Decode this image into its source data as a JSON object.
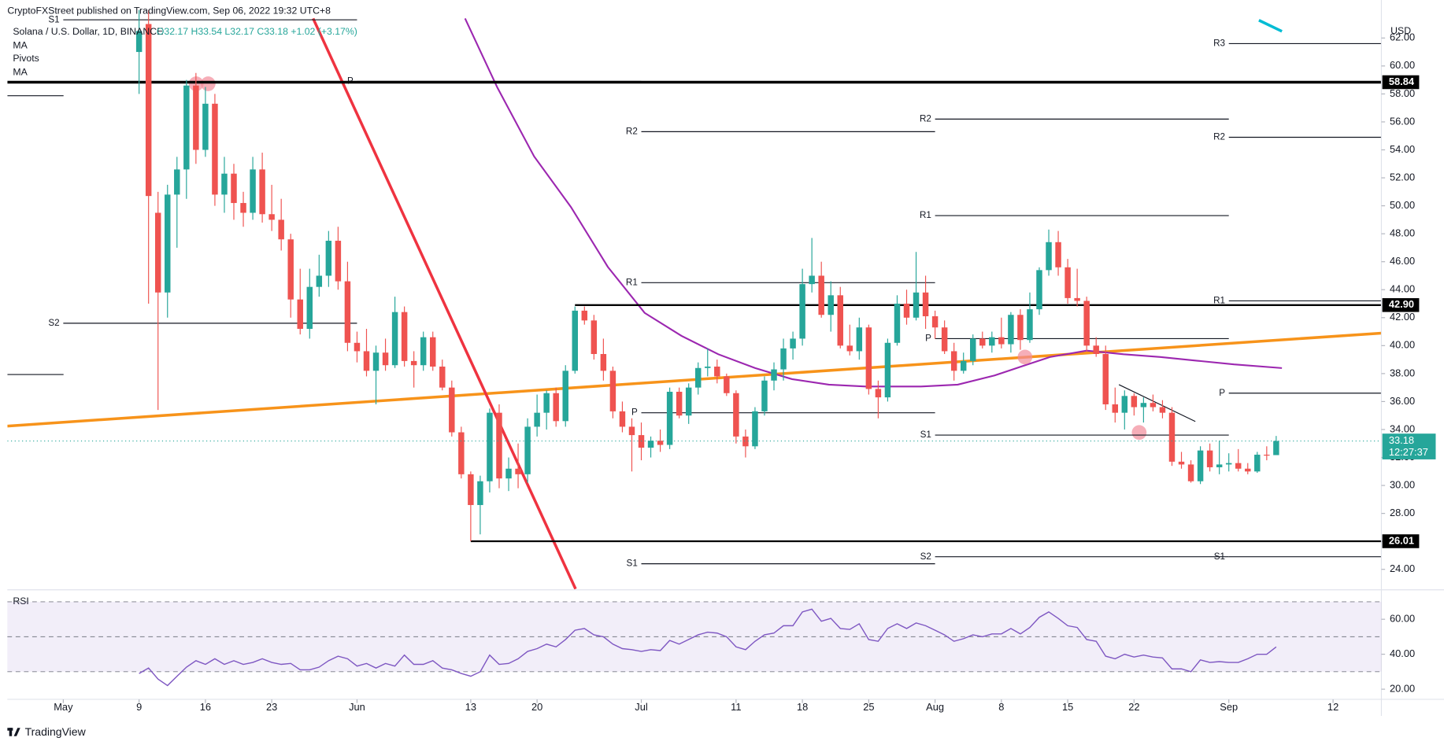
{
  "header": {
    "published": "CryptoFXStreet published on TradingView.com, Sep 06, 2022 19:32 UTC+8",
    "symbol": "Solana / U.S. Dollar, 1D, BINANCE",
    "ohlc": "O32.17 H33.54 L32.17 C33.18 +1.02 (+3.17%)",
    "indicators": [
      "MA",
      "Pivots",
      "MA"
    ]
  },
  "footer": "TradingView",
  "chart_data": {
    "type": "candlestick",
    "currency": "USD",
    "up_color": "#26a69a",
    "down_color": "#ef5350",
    "xlim": [
      -5.9,
      139.1
    ],
    "xticks": [
      {
        "value": 0,
        "label": "May"
      },
      {
        "value": 8,
        "label": "9"
      },
      {
        "value": 15,
        "label": "16"
      },
      {
        "value": 22,
        "label": "23"
      },
      {
        "value": 31,
        "label": "Jun"
      },
      {
        "value": 43,
        "label": "13"
      },
      {
        "value": 50,
        "label": "20"
      },
      {
        "value": 61,
        "label": "Jul"
      },
      {
        "value": 71,
        "label": "11"
      },
      {
        "value": 78,
        "label": "18"
      },
      {
        "value": 85,
        "label": "25"
      },
      {
        "value": 92,
        "label": "Aug"
      },
      {
        "value": 99,
        "label": "8"
      },
      {
        "value": 106,
        "label": "15"
      },
      {
        "value": 113,
        "label": "22"
      },
      {
        "value": 123,
        "label": "Sep"
      },
      {
        "value": 134,
        "label": "12"
      }
    ],
    "ylim": [
      22.6,
      63.4
    ],
    "yticks": [
      {
        "value": 24,
        "label": "24.00"
      },
      {
        "value": 26,
        "label": "26.00"
      },
      {
        "value": 28,
        "label": "28.00"
      },
      {
        "value": 30,
        "label": "30.00"
      },
      {
        "value": 32,
        "label": "32.00"
      },
      {
        "value": 34,
        "label": "34.00"
      },
      {
        "value": 36,
        "label": "36.00"
      },
      {
        "value": 38,
        "label": "38.00"
      },
      {
        "value": 40,
        "label": "40.00"
      },
      {
        "value": 42,
        "label": "42.00"
      },
      {
        "value": 44,
        "label": "44.00"
      },
      {
        "value": 46,
        "label": "46.00"
      },
      {
        "value": 48,
        "label": "48.00"
      },
      {
        "value": 50,
        "label": "50.00"
      },
      {
        "value": 52,
        "label": "52.00"
      },
      {
        "value": 54,
        "label": "54.00"
      },
      {
        "value": 56,
        "label": "56.00"
      },
      {
        "value": 58,
        "label": "58.00"
      },
      {
        "value": 60,
        "label": "60.00"
      },
      {
        "value": 62,
        "label": "62.00"
      }
    ],
    "grid": false,
    "x": [
      8,
      9,
      10,
      11,
      12,
      13,
      14,
      15,
      16,
      17,
      18,
      19,
      20,
      21,
      22,
      23,
      24,
      25,
      26,
      27,
      28,
      29,
      30,
      31,
      32,
      33,
      34,
      35,
      36,
      37,
      38,
      39,
      40,
      41,
      42,
      43,
      44,
      45,
      46,
      47,
      48,
      49,
      50,
      51,
      52,
      53,
      54,
      55,
      56,
      57,
      58,
      59,
      60,
      61,
      62,
      63,
      64,
      65,
      66,
      67,
      68,
      69,
      70,
      71,
      72,
      73,
      74,
      75,
      76,
      77,
      78,
      79,
      80,
      81,
      82,
      83,
      84,
      85,
      86,
      87,
      88,
      89,
      90,
      91,
      92,
      93,
      94,
      95,
      96,
      97,
      98,
      99,
      100,
      101,
      102,
      103,
      104,
      105,
      106,
      107,
      108,
      109,
      110,
      111,
      112,
      113,
      114,
      115,
      116,
      117,
      118,
      119,
      120,
      121,
      122,
      123,
      124,
      125,
      126,
      127,
      128
    ],
    "open": [
      61,
      63,
      49.5,
      43.8,
      50.8,
      52.6,
      58.6,
      54,
      57.3,
      50.8,
      52.3,
      50.2,
      49.5,
      52.6,
      49.4,
      49,
      47.6,
      43.3,
      41.2,
      44.2,
      45,
      47.5,
      44.6,
      40.2,
      39.6,
      38.2,
      39.5,
      38.6,
      42.4,
      38.9,
      38.6,
      40.6,
      38.5,
      37,
      33.8,
      30.8,
      28.6,
      30.3,
      35.2,
      30.5,
      31.2,
      30.8,
      34.2,
      35.2,
      36.6,
      34.6,
      38.2,
      42.5,
      41.8,
      39.4,
      38.2,
      35.3,
      34.2,
      33.6,
      32.7,
      33.2,
      32.9,
      36.7,
      35,
      37,
      38.4,
      38.5,
      37.8,
      36.6,
      33.5,
      32.8,
      35.3,
      37.5,
      38.3,
      39.8,
      40.5,
      44.4,
      45,
      42.2,
      43.6,
      40,
      39.6,
      41.3,
      36.9,
      36.3,
      40.2,
      43,
      42,
      43.8,
      42.1,
      41.3,
      39.6,
      38.2,
      38.9,
      40.5,
      40,
      40.6,
      40.1,
      42.2,
      40.4,
      42.6,
      45.4,
      47.4,
      45.6,
      43.4,
      43.2,
      40,
      39.4,
      35.8,
      35.2,
      36.4,
      35.6,
      35.9,
      35.6,
      35.2,
      31.7,
      31.5,
      30.3,
      32.5,
      31.3,
      31.5,
      31.6,
      31.2,
      31,
      32.2,
      32.17
    ],
    "high": [
      64,
      64,
      51,
      51.5,
      53.5,
      59,
      59.5,
      58.5,
      58,
      53.5,
      53,
      51,
      53.5,
      53.8,
      51.5,
      50.5,
      48,
      45.5,
      45.5,
      46.5,
      48.2,
      48.5,
      46,
      41,
      41.2,
      40,
      40.5,
      43.5,
      42.8,
      39.6,
      41,
      41,
      39,
      37.5,
      34.2,
      31,
      30.7,
      35.5,
      35.8,
      32,
      33,
      34.8,
      36.5,
      36.8,
      37,
      38.6,
      42.8,
      42.8,
      42.2,
      40.5,
      38.5,
      36,
      34.8,
      34.5,
      33.5,
      34,
      37,
      37,
      37.3,
      38.8,
      39.8,
      39,
      38,
      36.8,
      34,
      35.6,
      37.8,
      38.8,
      40.5,
      41,
      45.5,
      47.7,
      46,
      44.6,
      44.2,
      41.5,
      42,
      41.5,
      37.5,
      40.5,
      43.6,
      44,
      46.7,
      45,
      42.5,
      41.8,
      40.2,
      39.5,
      40.8,
      41,
      41,
      42,
      42.4,
      42.6,
      43.8,
      45.6,
      48.3,
      48.2,
      46.2,
      45.5,
      43.5,
      40.6,
      40,
      37,
      36.8,
      36.6,
      36.3,
      36.5,
      36.1,
      35.6,
      32.4,
      31.8,
      32.8,
      33,
      33.2,
      32.3,
      32.6,
      31.6,
      32.4,
      32.8,
      33.54
    ],
    "low": [
      58,
      43,
      35.4,
      42,
      47,
      50.5,
      53,
      53.5,
      50,
      49.5,
      49,
      48.5,
      49,
      48.8,
      48.2,
      46.8,
      42,
      40.8,
      40.5,
      43.5,
      44.2,
      44,
      39.6,
      38.8,
      37.8,
      35.8,
      38.2,
      38.4,
      38.5,
      37,
      38.2,
      38.2,
      36.8,
      33.5,
      30.5,
      26.01,
      26.5,
      29.5,
      29.8,
      29.6,
      29.8,
      30.2,
      33.5,
      34,
      34.2,
      34.2,
      38,
      41.5,
      39,
      37.5,
      34.8,
      33.8,
      31,
      31.8,
      32,
      32.4,
      32.6,
      34.8,
      34.4,
      36.5,
      37.8,
      37.3,
      36.4,
      33,
      32,
      32.6,
      35,
      36.8,
      37.5,
      39,
      40,
      43.8,
      42,
      41,
      39.8,
      39.3,
      39,
      36.5,
      34.8,
      36,
      40,
      41.5,
      41.8,
      41.2,
      40.5,
      39.4,
      37.5,
      38,
      38.6,
      39.8,
      39.5,
      39.8,
      39.5,
      39.7,
      40.2,
      42.2,
      45,
      45,
      43,
      42.8,
      39.6,
      39.2,
      35.4,
      34.5,
      34,
      35,
      34.5,
      35.3,
      34.8,
      31.4,
      31.2,
      30.2,
      30.1,
      31,
      30.8,
      31,
      31,
      30.8,
      30.9,
      31.8,
      32.17
    ],
    "close": [
      62.5,
      50.7,
      43.8,
      50.8,
      52.6,
      58.6,
      54,
      57.3,
      50.8,
      52.3,
      50.2,
      49.5,
      52.6,
      49.4,
      49,
      47.6,
      43.3,
      41.2,
      44.2,
      45,
      47.5,
      44.6,
      40.2,
      39.6,
      38.2,
      39.5,
      38.6,
      42.4,
      38.9,
      38.6,
      40.6,
      38.5,
      37,
      33.8,
      30.8,
      28.6,
      30.3,
      35.2,
      30.5,
      31.2,
      30.8,
      34.2,
      35.2,
      36.6,
      34.6,
      38.2,
      42.5,
      41.8,
      39.4,
      38.2,
      35.3,
      34.2,
      33.6,
      32.7,
      33.2,
      32.9,
      36.7,
      35,
      37,
      38.4,
      38.5,
      37.8,
      36.6,
      33.5,
      32.8,
      35.3,
      37.5,
      38.3,
      39.8,
      40.5,
      44.4,
      45,
      42.2,
      43.6,
      40,
      39.6,
      41.3,
      36.9,
      36.3,
      40.2,
      43,
      42,
      43.8,
      42.1,
      41.3,
      39.6,
      38.2,
      38.9,
      40.5,
      40,
      40.6,
      40.1,
      42.2,
      40.4,
      42.6,
      45.4,
      47.4,
      45.6,
      43.4,
      43.2,
      40,
      39.4,
      35.8,
      35.2,
      36.4,
      35.6,
      35.9,
      35.6,
      35.2,
      31.7,
      31.5,
      30.3,
      32.5,
      31.3,
      31.5,
      31.6,
      31.2,
      31,
      32.2,
      32.17,
      33.18
    ],
    "countdown": "12:27:37",
    "levels": [
      {
        "label": "58.84",
        "value": 58.84
      },
      {
        "label": "42.90",
        "value": 42.9,
        "from": 54
      },
      {
        "label": "26.01",
        "value": 26.01,
        "from": 43
      }
    ],
    "pivots": [
      {
        "label": "S1",
        "level": 63.3,
        "from": 0,
        "to": 31
      },
      {
        "label": "S2",
        "level": 41.6,
        "from": 0,
        "to": 31
      },
      {
        "label": "P",
        "level": 58.9,
        "from": 31,
        "to": 61
      },
      {
        "label": "R2",
        "level": 55.3,
        "from": 61,
        "to": 92
      },
      {
        "label": "R1",
        "level": 44.5,
        "from": 61,
        "to": 92
      },
      {
        "label": "P",
        "level": 35.2,
        "from": 61,
        "to": 92
      },
      {
        "label": "S1",
        "level": 24.4,
        "from": 61,
        "to": 92
      },
      {
        "label": "R2",
        "level": 56.2,
        "from": 92,
        "to": 123
      },
      {
        "label": "R1",
        "level": 49.3,
        "from": 92,
        "to": 123
      },
      {
        "label": "P",
        "level": 40.5,
        "from": 92,
        "to": 123
      },
      {
        "label": "S1",
        "level": 33.6,
        "from": 92,
        "to": 123
      },
      {
        "label": "S2",
        "level": 24.9,
        "from": 92,
        "to": 123
      },
      {
        "label": "R3",
        "level": 61.6,
        "from": 123,
        "to": 139.1
      },
      {
        "label": "R2",
        "level": 54.9,
        "from": 123,
        "to": 139.1
      },
      {
        "label": "R1",
        "level": 43.2,
        "from": 123,
        "to": 139.1
      },
      {
        "label": "P",
        "level": 36.6,
        "from": 123,
        "to": 139.1
      },
      {
        "label": "S1",
        "level": 24.9,
        "from": 123,
        "to": 139.1
      }
    ],
    "rsi_title": "RSI",
    "rsi_color": "#7e57c2",
    "rsi_lim": [
      14.2,
      76.3
    ],
    "rsi_ticks": [
      {
        "value": 20,
        "label": "20.00"
      },
      {
        "value": 40,
        "label": "40.00"
      },
      {
        "value": 60,
        "label": "60.00"
      }
    ],
    "rsi_levels": [
      30,
      50,
      70
    ],
    "rsi": [
      29.0,
      32.1,
      25.8,
      22.1,
      27.4,
      32.6,
      36.3,
      34.2,
      37.4,
      34.2,
      36.3,
      34.2,
      35.3,
      37.4,
      35.3,
      34.2,
      34.7,
      31.1,
      31.1,
      32.6,
      36.3,
      38.9,
      37.4,
      33.2,
      34.7,
      32.1,
      34.7,
      33.2,
      39.5,
      34.2,
      34.2,
      36.3,
      32.1,
      31.1,
      29.0,
      27.4,
      30.0,
      39.5,
      34.2,
      34.7,
      37.4,
      41.6,
      43.2,
      45.8,
      44.2,
      48.4,
      53.7,
      54.7,
      51.1,
      50.0,
      45.8,
      43.2,
      42.6,
      41.6,
      42.6,
      42.1,
      47.9,
      45.8,
      48.4,
      51.1,
      52.6,
      52.1,
      50.0,
      44.2,
      42.6,
      47.4,
      51.1,
      52.1,
      56.3,
      56.3,
      64.2,
      65.8,
      58.9,
      60.5,
      54.7,
      54.2,
      57.4,
      48.4,
      47.4,
      54.7,
      57.4,
      54.7,
      57.9,
      56.3,
      53.7,
      51.1,
      47.4,
      48.9,
      51.1,
      50.0,
      51.6,
      51.6,
      54.7,
      51.6,
      55.3,
      61.1,
      64.2,
      60.5,
      56.3,
      55.3,
      48.4,
      47.4,
      38.9,
      37.4,
      40.0,
      38.4,
      39.5,
      38.4,
      37.9,
      31.6,
      31.6,
      30.0,
      36.8,
      35.3,
      35.8,
      35.3,
      35.3,
      37.4,
      40.0,
      40.0,
      44.2
    ]
  }
}
